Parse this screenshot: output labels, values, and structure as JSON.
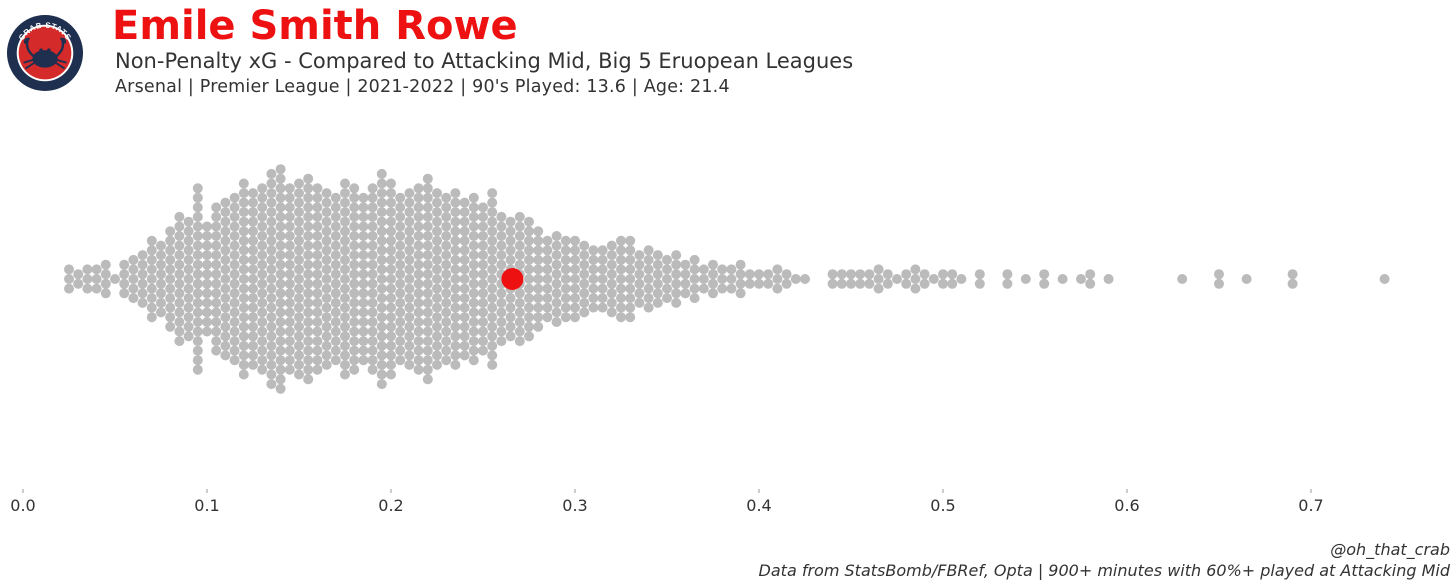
{
  "header": {
    "logo_text": "CRAB STATS",
    "title": "Emile Smith Rowe",
    "subtitle": "Non-Penalty xG - Compared to Attacking Mid, Big 5 Eruopean Leagues",
    "meta": "Arsenal  | Premier League | 2021-2022 | 90's Played: 13.6 | Age: 21.4"
  },
  "colors": {
    "title": "#ee1111",
    "highlight": "#ee1111",
    "points": "#bbbbbb",
    "logo_ring": "#1f2f4f",
    "logo_inner": "#d42a2a"
  },
  "chart_data": {
    "type": "scatter",
    "subtype": "beeswarm",
    "xlabel": "",
    "ylabel": "",
    "xlim": [
      0,
      0.74
    ],
    "x_ticks": [
      "0.0",
      "0.1",
      "0.2",
      "0.3",
      "0.4",
      "0.5",
      "0.6",
      "0.7"
    ],
    "x_tick_values": [
      0.0,
      0.1,
      0.2,
      0.3,
      0.4,
      0.5,
      0.6,
      0.7
    ],
    "grid": false,
    "highlight": {
      "label": "Emile Smith Rowe",
      "value": 0.266
    },
    "histogram": {
      "bin_width": 0.005,
      "bins": [
        [
          0.025,
          3
        ],
        [
          0.03,
          2
        ],
        [
          0.035,
          3
        ],
        [
          0.04,
          3
        ],
        [
          0.045,
          4
        ],
        [
          0.05,
          1
        ],
        [
          0.055,
          4
        ],
        [
          0.06,
          5
        ],
        [
          0.065,
          6
        ],
        [
          0.07,
          9
        ],
        [
          0.075,
          8
        ],
        [
          0.08,
          11
        ],
        [
          0.085,
          14
        ],
        [
          0.09,
          13
        ],
        [
          0.095,
          20
        ],
        [
          0.1,
          12
        ],
        [
          0.105,
          16
        ],
        [
          0.11,
          17
        ],
        [
          0.115,
          18
        ],
        [
          0.12,
          21
        ],
        [
          0.125,
          19
        ],
        [
          0.13,
          20
        ],
        [
          0.135,
          23
        ],
        [
          0.14,
          24
        ],
        [
          0.145,
          20
        ],
        [
          0.15,
          21
        ],
        [
          0.155,
          22
        ],
        [
          0.16,
          20
        ],
        [
          0.165,
          19
        ],
        [
          0.17,
          18
        ],
        [
          0.175,
          21
        ],
        [
          0.18,
          20
        ],
        [
          0.185,
          18
        ],
        [
          0.19,
          20
        ],
        [
          0.195,
          23
        ],
        [
          0.2,
          21
        ],
        [
          0.205,
          18
        ],
        [
          0.21,
          19
        ],
        [
          0.215,
          20
        ],
        [
          0.22,
          22
        ],
        [
          0.225,
          19
        ],
        [
          0.23,
          18
        ],
        [
          0.235,
          19
        ],
        [
          0.24,
          17
        ],
        [
          0.245,
          18
        ],
        [
          0.25,
          16
        ],
        [
          0.255,
          19
        ],
        [
          0.26,
          14
        ],
        [
          0.265,
          13
        ],
        [
          0.27,
          14
        ],
        [
          0.275,
          13
        ],
        [
          0.28,
          11
        ],
        [
          0.285,
          9
        ],
        [
          0.29,
          10
        ],
        [
          0.295,
          9
        ],
        [
          0.3,
          9
        ],
        [
          0.305,
          8
        ],
        [
          0.31,
          7
        ],
        [
          0.315,
          7
        ],
        [
          0.32,
          8
        ],
        [
          0.325,
          9
        ],
        [
          0.33,
          9
        ],
        [
          0.335,
          6
        ],
        [
          0.34,
          7
        ],
        [
          0.345,
          6
        ],
        [
          0.35,
          5
        ],
        [
          0.355,
          6
        ],
        [
          0.36,
          4
        ],
        [
          0.365,
          5
        ],
        [
          0.37,
          3
        ],
        [
          0.375,
          4
        ],
        [
          0.38,
          3
        ],
        [
          0.385,
          3
        ],
        [
          0.39,
          4
        ],
        [
          0.395,
          2
        ],
        [
          0.4,
          2
        ],
        [
          0.405,
          2
        ],
        [
          0.41,
          3
        ],
        [
          0.415,
          2
        ],
        [
          0.42,
          1
        ],
        [
          0.425,
          1
        ],
        [
          0.44,
          2
        ],
        [
          0.445,
          2
        ],
        [
          0.45,
          2
        ],
        [
          0.455,
          2
        ],
        [
          0.46,
          2
        ],
        [
          0.465,
          3
        ],
        [
          0.47,
          2
        ],
        [
          0.475,
          1
        ],
        [
          0.48,
          2
        ],
        [
          0.485,
          3
        ],
        [
          0.49,
          2
        ],
        [
          0.495,
          1
        ],
        [
          0.5,
          2
        ],
        [
          0.505,
          2
        ],
        [
          0.51,
          1
        ],
        [
          0.52,
          2
        ],
        [
          0.535,
          2
        ],
        [
          0.545,
          1
        ],
        [
          0.555,
          2
        ],
        [
          0.565,
          1
        ],
        [
          0.575,
          1
        ],
        [
          0.58,
          2
        ],
        [
          0.59,
          1
        ],
        [
          0.63,
          1
        ],
        [
          0.65,
          2
        ],
        [
          0.665,
          1
        ],
        [
          0.69,
          2
        ],
        [
          0.74,
          1
        ]
      ]
    }
  },
  "footer": {
    "handle": "@oh_that_crab",
    "source": "Data from StatsBomb/FBRef, Opta | 900+ minutes with 60%+ played at Attacking Mid"
  }
}
